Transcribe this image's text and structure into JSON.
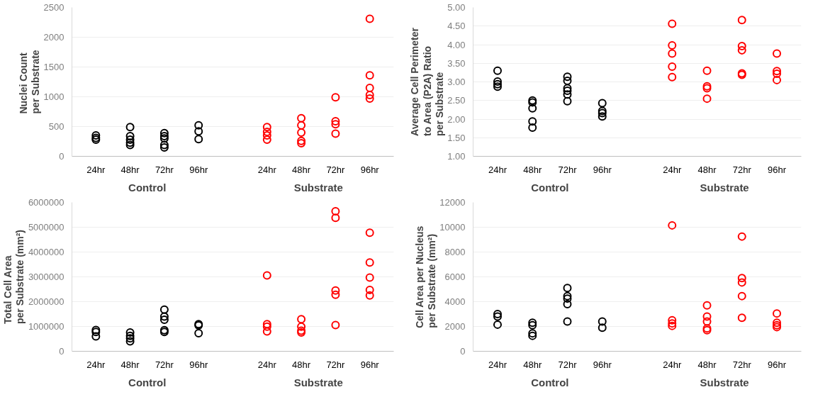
{
  "chart_data": [
    {
      "type": "scatter",
      "ylabel": "Nuclei Count\nper Substrate",
      "marker": "circle",
      "grid": "y",
      "ylim": [
        0,
        2500
      ],
      "yticks": [
        0,
        500,
        1000,
        1500,
        2000,
        2500
      ],
      "categories": [
        "24hr",
        "48hr",
        "72hr",
        "96hr",
        null,
        "24hr",
        "48hr",
        "72hr",
        "96hr"
      ],
      "annotations": [
        "Control",
        "Substrate"
      ],
      "series": [
        {
          "values": [
            350,
            490,
            390,
            520,
            null,
            490,
            640,
            990,
            2310
          ],
          "colors": [
            "#000000",
            "#000000",
            "#000000",
            "#000000",
            null,
            "#ff0000",
            "#ff0000",
            "#ff0000",
            "#ff0000"
          ]
        },
        {
          "values": [
            310,
            340,
            340,
            420,
            null,
            410,
            520,
            590,
            1360
          ],
          "colors": [
            "#000000",
            "#000000",
            "#000000",
            "#000000",
            null,
            "#ff0000",
            "#ff0000",
            "#ff0000",
            "#ff0000"
          ]
        },
        {
          "values": [
            280,
            280,
            300,
            290,
            null,
            350,
            400,
            540,
            1150
          ],
          "colors": [
            "#000000",
            "#000000",
            "#000000",
            "#000000",
            null,
            "#ff0000",
            "#ff0000",
            "#ff0000",
            "#ff0000"
          ]
        },
        {
          "values": [
            null,
            230,
            190,
            null,
            null,
            280,
            260,
            380,
            1030
          ],
          "colors": [
            null,
            "#000000",
            "#000000",
            null,
            null,
            "#ff0000",
            "#ff0000",
            "#ff0000",
            "#ff0000"
          ]
        },
        {
          "values": [
            null,
            190,
            150,
            null,
            null,
            null,
            220,
            null,
            970
          ],
          "colors": [
            null,
            "#000000",
            "#000000",
            null,
            null,
            null,
            "#ff0000",
            null,
            "#ff0000"
          ]
        }
      ]
    },
    {
      "type": "scatter",
      "ylabel": "Average Cell Perimeter\nto Area (P2A) Ratio\nper Substrate",
      "marker": "circle",
      "grid": "y",
      "ylim": [
        1,
        5
      ],
      "yticks": [
        {
          "value": 1,
          "label": "1.00"
        },
        {
          "value": 1.5,
          "label": "1.50"
        },
        {
          "value": 2,
          "label": "2.00"
        },
        {
          "value": 2.5,
          "label": "2.50"
        },
        {
          "value": 3,
          "label": "3.00"
        },
        {
          "value": 3.5,
          "label": "3.50"
        },
        {
          "value": 4,
          "label": "4.00"
        },
        {
          "value": 4.5,
          "label": "4.50"
        },
        {
          "value": 5,
          "label": "5.00"
        }
      ],
      "categories": [
        "24hr",
        "48hr",
        "72hr",
        "96hr",
        null,
        "24hr",
        "48hr",
        "72hr",
        "96hr"
      ],
      "annotations": [
        "Control",
        "Substrate"
      ],
      "series": [
        {
          "values": [
            3.3,
            2.5,
            3.14,
            2.43,
            null,
            4.56,
            3.3,
            4.66,
            3.76
          ],
          "colors": [
            "#000000",
            "#000000",
            "#000000",
            "#000000",
            null,
            "#ff0000",
            "#ff0000",
            "#ff0000",
            "#ff0000"
          ]
        },
        {
          "values": [
            3.01,
            2.45,
            3.03,
            2.22,
            null,
            3.98,
            2.88,
            3.96,
            3.29
          ],
          "colors": [
            "#000000",
            "#000000",
            "#000000",
            "#000000",
            null,
            "#ff0000",
            "#ff0000",
            "#ff0000",
            "#ff0000"
          ]
        },
        {
          "values": [
            2.94,
            2.29,
            2.83,
            2.16,
            null,
            3.76,
            2.83,
            3.85,
            3.22
          ],
          "colors": [
            "#000000",
            "#000000",
            "#000000",
            "#000000",
            null,
            "#ff0000",
            "#ff0000",
            "#ff0000",
            "#ff0000"
          ]
        },
        {
          "values": [
            2.87,
            1.94,
            2.76,
            2.07,
            null,
            3.41,
            2.55,
            3.23,
            3.05
          ],
          "colors": [
            "#000000",
            "#000000",
            "#000000",
            "#000000",
            null,
            "#ff0000",
            "#ff0000",
            "#ff0000",
            "#ff0000"
          ]
        },
        {
          "values": [
            null,
            1.77,
            2.66,
            null,
            null,
            3.13,
            null,
            3.19,
            null
          ],
          "colors": [
            null,
            "#000000",
            "#000000",
            null,
            null,
            "#ff0000",
            null,
            "#ff0000",
            null
          ]
        },
        {
          "values": [
            null,
            null,
            2.48,
            null,
            null,
            null,
            null,
            null,
            null
          ],
          "colors": [
            null,
            null,
            "#000000",
            null,
            null,
            null,
            null,
            null,
            null
          ]
        }
      ]
    },
    {
      "type": "scatter",
      "ylabel": "Total Cell Area\nper Substrate (mm²)",
      "marker": "circle",
      "grid": "y",
      "ylim": [
        0,
        6000000
      ],
      "yticks": [
        0,
        1000000,
        2000000,
        3000000,
        4000000,
        5000000,
        6000000
      ],
      "categories": [
        "24hr",
        "48hr",
        "72hr",
        "96hr",
        null,
        "24hr",
        "48hr",
        "72hr",
        "96hr"
      ],
      "annotations": [
        "Control",
        "Substrate"
      ],
      "series": [
        {
          "values": [
            860000,
            760000,
            1680000,
            1090000,
            null,
            3060000,
            1290000,
            5640000,
            4780000
          ],
          "colors": [
            "#000000",
            "#000000",
            "#000000",
            "#000000",
            null,
            "#ff0000",
            "#ff0000",
            "#ff0000",
            "#ff0000"
          ]
        },
        {
          "values": [
            780000,
            620000,
            1400000,
            1040000,
            null,
            1090000,
            990000,
            5380000,
            3580000
          ],
          "colors": [
            "#000000",
            "#000000",
            "#000000",
            "#000000",
            null,
            "#ff0000",
            "#ff0000",
            "#ff0000",
            "#ff0000"
          ]
        },
        {
          "values": [
            600000,
            520000,
            1270000,
            730000,
            null,
            990000,
            830000,
            2450000,
            2970000
          ],
          "colors": [
            "#000000",
            "#000000",
            "#000000",
            "#000000",
            null,
            "#ff0000",
            "#ff0000",
            "#ff0000",
            "#ff0000"
          ]
        },
        {
          "values": [
            null,
            400000,
            850000,
            null,
            null,
            800000,
            760000,
            2280000,
            2470000
          ],
          "colors": [
            null,
            "#000000",
            "#000000",
            null,
            null,
            "#ff0000",
            "#ff0000",
            "#ff0000",
            "#ff0000"
          ]
        },
        {
          "values": [
            null,
            null,
            780000,
            null,
            null,
            null,
            null,
            1060000,
            2250000
          ],
          "colors": [
            null,
            null,
            "#000000",
            null,
            null,
            null,
            null,
            "#ff0000",
            "#ff0000"
          ]
        }
      ]
    },
    {
      "type": "scatter",
      "ylabel": "Cell Area per Nucleus\nper Substrate (mm²)",
      "marker": "circle",
      "grid": "y",
      "ylim": [
        0,
        12000
      ],
      "yticks": [
        0,
        2000,
        4000,
        6000,
        8000,
        10000,
        12000
      ],
      "categories": [
        "24hr",
        "48hr",
        "72hr",
        "96hr",
        null,
        "24hr",
        "48hr",
        "72hr",
        "96hr"
      ],
      "annotations": [
        "Control",
        "Substrate"
      ],
      "series": [
        {
          "values": [
            3000,
            2300,
            5100,
            2400,
            null,
            10150,
            3700,
            9250,
            3050
          ],
          "colors": [
            "#000000",
            "#000000",
            "#000000",
            "#000000",
            null,
            "#ff0000",
            "#ff0000",
            "#ff0000",
            "#ff0000"
          ]
        },
        {
          "values": [
            2800,
            2100,
            4450,
            1900,
            null,
            2500,
            2800,
            5900,
            2300
          ],
          "colors": [
            "#000000",
            "#000000",
            "#000000",
            "#000000",
            null,
            "#ff0000",
            "#ff0000",
            "#ff0000",
            "#ff0000"
          ]
        },
        {
          "values": [
            2150,
            1450,
            4250,
            null,
            null,
            2250,
            2400,
            5550,
            2100
          ],
          "colors": [
            "#000000",
            "#000000",
            "#000000",
            null,
            null,
            "#ff0000",
            "#ff0000",
            "#ff0000",
            "#ff0000"
          ]
        },
        {
          "values": [
            null,
            1250,
            3800,
            null,
            null,
            2050,
            1850,
            4450,
            1950
          ],
          "colors": [
            null,
            "#000000",
            "#000000",
            null,
            null,
            "#ff0000",
            "#ff0000",
            "#ff0000",
            "#ff0000"
          ]
        },
        {
          "values": [
            null,
            null,
            2400,
            null,
            null,
            null,
            1700,
            2700,
            null
          ],
          "colors": [
            null,
            null,
            "#000000",
            null,
            null,
            null,
            "#ff0000",
            "#ff0000",
            null
          ]
        }
      ]
    }
  ]
}
